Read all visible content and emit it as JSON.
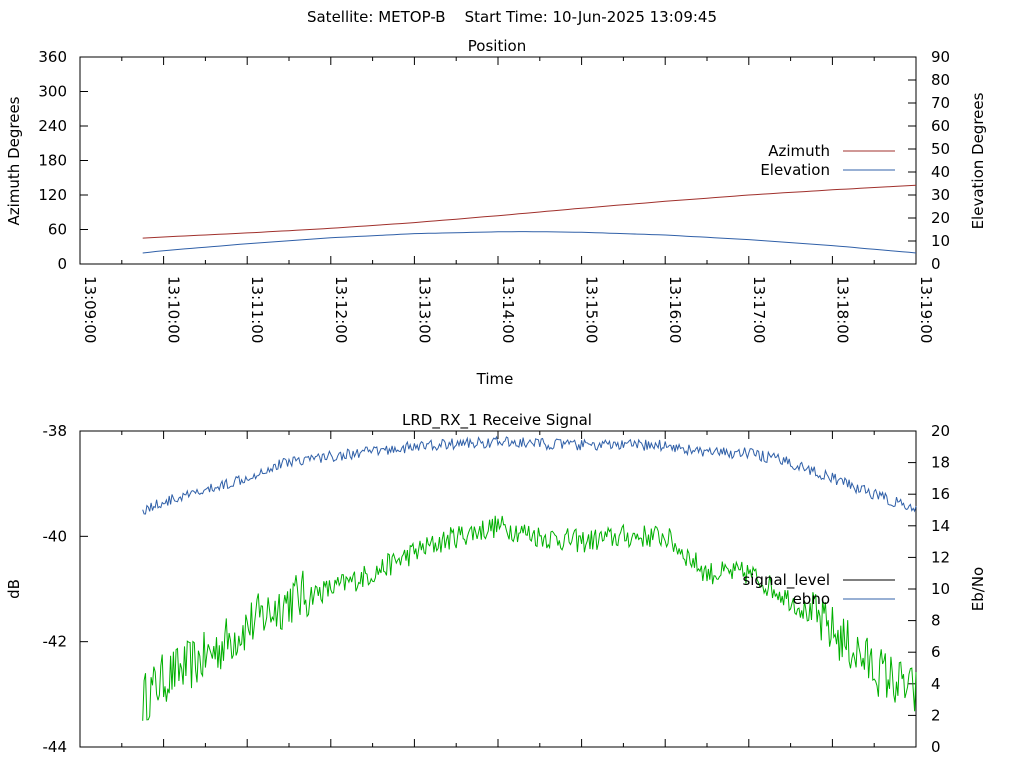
{
  "header": {
    "title": "Satellite: METOP-B    Start Time: 10-Jun-2025 13:09:45"
  },
  "colors": {
    "azimuth": "#a0302c",
    "elevation": "#3060a8",
    "signal_level": "#00b000",
    "ebno": "#3060a8",
    "signal_level_legend": "#000000"
  },
  "chart_data": [
    {
      "type": "line",
      "title": "Position",
      "xlabel": "Time",
      "ylabel": "Azimuth Degrees",
      "y2label": "Elevation Degrees",
      "xlim": [
        "13:09:00",
        "13:19:00"
      ],
      "xticks": [
        "13:09:00",
        "13:10:00",
        "13:11:00",
        "13:12:00",
        "13:13:00",
        "13:14:00",
        "13:15:00",
        "13:16:00",
        "13:17:00",
        "13:18:00",
        "13:19:00"
      ],
      "ylim": [
        0,
        360
      ],
      "yticks": [
        "0",
        "60",
        "120",
        "180",
        "240",
        "300",
        "360"
      ],
      "y2lim": [
        0,
        90
      ],
      "y2ticks": [
        "0",
        "10",
        "20",
        "30",
        "40",
        "50",
        "60",
        "70",
        "80",
        "90"
      ],
      "grid": false,
      "legend_position": "right",
      "series": [
        {
          "name": "Azimuth",
          "axis": "left",
          "x": [
            "13:09:45",
            "13:10:00",
            "13:11:00",
            "13:12:00",
            "13:13:00",
            "13:14:00",
            "13:15:00",
            "13:16:00",
            "13:17:00",
            "13:18:00",
            "13:19:00"
          ],
          "values": [
            45,
            47,
            54,
            62,
            72,
            84,
            97,
            109,
            120,
            129,
            137
          ]
        },
        {
          "name": "Elevation",
          "axis": "right",
          "x": [
            "13:09:45",
            "13:10:00",
            "13:11:00",
            "13:12:00",
            "13:13:00",
            "13:14:00",
            "13:14:20",
            "13:15:00",
            "13:16:00",
            "13:17:00",
            "13:18:00",
            "13:19:00"
          ],
          "values": [
            4.8,
            5.8,
            8.8,
            11.4,
            13.2,
            14.0,
            14.1,
            13.8,
            12.6,
            10.6,
            8.0,
            4.8
          ]
        }
      ]
    },
    {
      "type": "line",
      "title": "LRD_RX_1 Receive Signal",
      "ylabel": "dB",
      "y2label": "Eb/No",
      "xlim": [
        "13:09:00",
        "13:19:00"
      ],
      "ylim": [
        -44,
        -38
      ],
      "yticks": [
        "-44",
        "-42",
        "-40",
        "-38"
      ],
      "y2lim": [
        0,
        20
      ],
      "y2ticks": [
        "0",
        "2",
        "4",
        "6",
        "8",
        "10",
        "12",
        "14",
        "16",
        "18",
        "20"
      ],
      "grid": false,
      "legend_position": "right",
      "series": [
        {
          "name": "signal_level",
          "axis": "left",
          "x": [
            "13:09:45",
            "13:10:00",
            "13:10:30",
            "13:11:00",
            "13:11:30",
            "13:12:00",
            "13:12:30",
            "13:13:00",
            "13:13:30",
            "13:14:00",
            "13:14:30",
            "13:15:00",
            "13:15:30",
            "13:16:00",
            "13:16:30",
            "13:17:00",
            "13:17:30",
            "13:18:00",
            "13:18:30",
            "13:19:00"
          ],
          "values": [
            -43.1,
            -42.7,
            -42.3,
            -41.7,
            -41.2,
            -41.0,
            -40.7,
            -40.3,
            -40.0,
            -39.8,
            -40.0,
            -40.1,
            -40.0,
            -40.0,
            -40.7,
            -40.7,
            -41.2,
            -41.8,
            -42.5,
            -43.0
          ]
        },
        {
          "name": "ebno",
          "axis": "right",
          "x": [
            "13:09:45",
            "13:10:00",
            "13:10:30",
            "13:11:00",
            "13:11:30",
            "13:12:00",
            "13:12:30",
            "13:13:00",
            "13:13:30",
            "13:14:00",
            "13:14:30",
            "13:15:00",
            "13:15:30",
            "13:16:00",
            "13:16:30",
            "13:17:00",
            "13:17:30",
            "13:18:00",
            "13:18:30",
            "13:19:00"
          ],
          "values": [
            15.0,
            15.5,
            16.2,
            17.1,
            18.1,
            18.4,
            18.7,
            19.0,
            19.2,
            19.3,
            19.2,
            19.1,
            19.1,
            19.1,
            18.6,
            18.6,
            18.0,
            17.0,
            16.0,
            15.0
          ]
        }
      ]
    }
  ]
}
